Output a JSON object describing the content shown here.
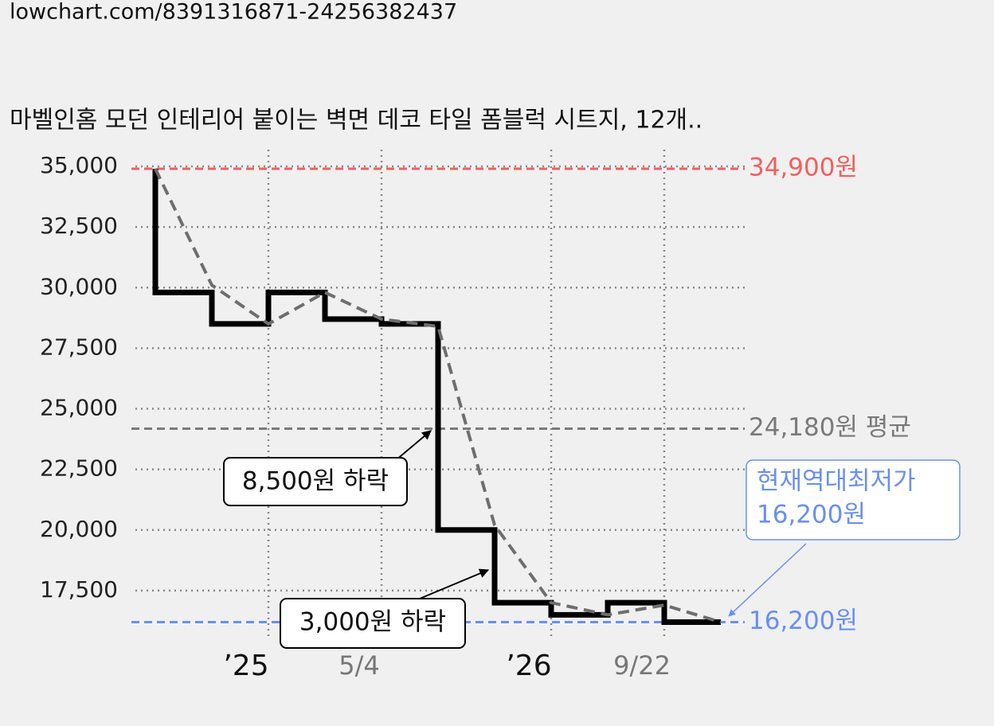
{
  "url": "lowchart.com/8391316871-24256382437",
  "chart_data": {
    "type": "step-line",
    "title": "마벨인홈 모던 인테리어 붙이는 벽면 데코 타일 폼블럭 시트지, 12개..",
    "x": [
      0,
      0,
      1,
      2,
      3,
      4,
      5,
      6,
      7,
      8,
      9,
      10
    ],
    "series": [
      {
        "color": "#000000",
        "values": [
          34900,
          29800,
          28500,
          29800,
          28700,
          28500,
          20000,
          17000,
          16500,
          17000,
          16200,
          16200
        ]
      },
      {
        "color": "#6e6e6e",
        "dashed": true,
        "x": [
          0,
          1,
          2,
          3,
          4,
          5,
          6,
          7,
          8,
          9,
          10
        ],
        "values": [
          34900,
          30100,
          28500,
          29800,
          28700,
          28400,
          20200,
          17000,
          16500,
          16900,
          16200
        ]
      }
    ],
    "xlim": [
      0,
      10
    ],
    "xticks": [
      {
        "value": 2,
        "label": "’25"
      },
      {
        "value": 4,
        "label": "5/4"
      },
      {
        "value": 7,
        "label": "’26"
      },
      {
        "value": 9,
        "label": "9/22"
      }
    ],
    "ylim": [
      15000,
      35000
    ],
    "yticks": [
      {
        "value": 17500,
        "label": "17,500"
      },
      {
        "value": 20000,
        "label": "20,000"
      },
      {
        "value": 22500,
        "label": "22,500"
      },
      {
        "value": 25000,
        "label": "25,000"
      },
      {
        "value": 27500,
        "label": "27,500"
      },
      {
        "value": 30000,
        "label": "30,000"
      },
      {
        "value": 32500,
        "label": "32,500"
      },
      {
        "value": 35000,
        "label": "35,000"
      }
    ],
    "grid": true,
    "reference_lines": [
      {
        "value": 34900,
        "label": "34,900원",
        "color": "#f0605f"
      },
      {
        "value": 24180,
        "label": "24,180원 평균",
        "color": "#7a7a7a"
      },
      {
        "value": 16200,
        "label": "16,200원",
        "color": "#6b8ff0"
      }
    ],
    "annotations": [
      {
        "text": "8,500원 하락"
      },
      {
        "text": "3,000원 하락"
      },
      {
        "lines": [
          "현재역대최저가",
          "16,200원"
        ],
        "color": "#6b8ff0"
      }
    ]
  }
}
